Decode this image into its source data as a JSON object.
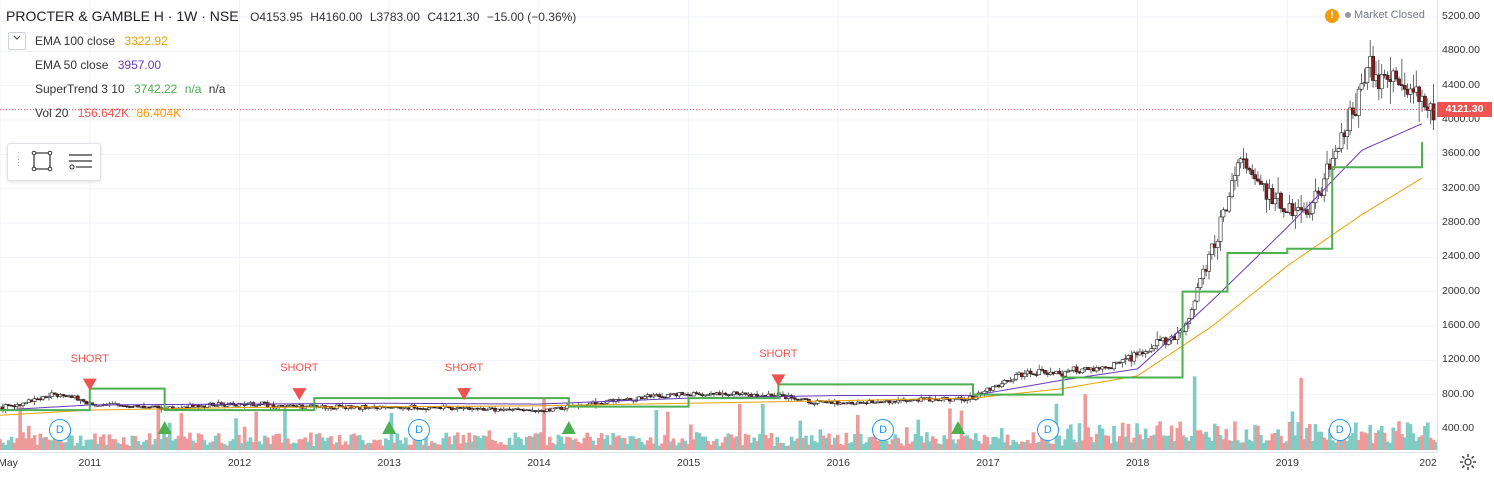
{
  "symbol": {
    "title": "PROCTER & GAMBLE H · 1W · NSE",
    "open": "O4153.95",
    "high": "H4160.00",
    "low": "L3783.00",
    "close": "C4121.30",
    "change": "−15.00 (−0.36%)"
  },
  "indicators": [
    {
      "label": "EMA 100 close",
      "value": "3322.92",
      "color": "#e8a400"
    },
    {
      "label": "EMA 50 close",
      "value": "3957.00",
      "color": "#673ab7"
    },
    {
      "label": "SuperTrend 3 10",
      "value": "3742.22",
      "extra1": "n/a",
      "extra2": "n/a",
      "color": "#4caf50"
    },
    {
      "label": "Vol 20",
      "value": "156.642K",
      "extra1": "86.404K",
      "color": "#ef5350",
      "color2": "#ff9800"
    }
  ],
  "market_status": "Market Closed",
  "warning_badge": "!",
  "current_price_label": "4121.30",
  "y_axis": {
    "ticks": [
      "5200.00",
      "4800.00",
      "4400.00",
      "4000.00",
      "3600.00",
      "3200.00",
      "2800.00",
      "2400.00",
      "2000.00",
      "1600.00",
      "1200.00",
      "800.00",
      "400.00"
    ]
  },
  "x_axis": {
    "ticks": [
      "May",
      "2011",
      "2012",
      "2013",
      "2014",
      "2015",
      "2016",
      "2017",
      "2018",
      "2019",
      "202"
    ]
  },
  "signals": {
    "short_label": "SHORT",
    "dividend_label": "D"
  },
  "icons": {
    "collapse": "chevron-down-icon",
    "rectangle_tool": "rectangle-icon",
    "menu_tool": "menu-icon",
    "settings": "gear-icon"
  },
  "colors": {
    "up": "#26a69a",
    "down": "#ef5350",
    "ema100": "#e8a400",
    "ema50": "#673ab7",
    "supertrend_up": "#4caf50",
    "supertrend_down": "#ef5350",
    "dividend": "#2196f3"
  },
  "chart_data": {
    "type": "line",
    "timeframe": "1W",
    "series": [
      {
        "name": "EMA 100 close",
        "x": [
          2010.4,
          2011,
          2012,
          2013,
          2014,
          2015,
          2016,
          2016.9,
          2017.5,
          2018,
          2018.5,
          2019,
          2019.5,
          2019.9
        ],
        "values": [
          560,
          620,
          650,
          660,
          670,
          700,
          730,
          760,
          870,
          1020,
          1600,
          2300,
          2900,
          3322.92
        ]
      },
      {
        "name": "EMA 50 close",
        "x": [
          2010.4,
          2011,
          2012,
          2013,
          2014,
          2015,
          2016,
          2016.9,
          2017.5,
          2018,
          2018.5,
          2019,
          2019.5,
          2019.9
        ],
        "values": [
          620,
          680,
          690,
          700,
          690,
          760,
          790,
          790,
          970,
          1100,
          1900,
          2750,
          3650,
          3957.0
        ]
      },
      {
        "name": "SuperTrend 3 10",
        "x": [
          2010.4,
          2011,
          2011.5,
          2012.5,
          2013.5,
          2014.2,
          2015,
          2015.6,
          2016.9,
          2017.5,
          2018.3,
          2018.6,
          2019,
          2019.3,
          2019.9
        ],
        "values": [
          620,
          870,
          620,
          760,
          760,
          660,
          760,
          920,
          800,
          1000,
          2000,
          2450,
          2500,
          3450,
          3742.22
        ]
      },
      {
        "name": "Close",
        "x": [
          2010.4,
          2010.8,
          2011,
          2011.5,
          2012,
          2012.5,
          2013,
          2013.5,
          2014,
          2014.5,
          2015,
          2015.5,
          2016,
          2016.5,
          2016.9,
          2017.2,
          2017.5,
          2017.8,
          2018,
          2018.3,
          2018.5,
          2018.7,
          2019,
          2019.2,
          2019.4,
          2019.55,
          2019.7,
          2019.9
        ],
        "values": [
          640,
          820,
          690,
          650,
          690,
          660,
          650,
          640,
          610,
          730,
          820,
          790,
          690,
          740,
          760,
          1040,
          1060,
          1110,
          1280,
          1510,
          2500,
          3550,
          2900,
          3050,
          4000,
          4600,
          4500,
          4121.3
        ]
      }
    ],
    "signals": [
      {
        "type": "short",
        "x": 2011.0,
        "price": 870
      },
      {
        "type": "short",
        "x": 2012.4,
        "price": 760
      },
      {
        "type": "short",
        "x": 2013.5,
        "price": 760
      },
      {
        "type": "short",
        "x": 2015.6,
        "price": 920
      },
      {
        "type": "long",
        "x": 2011.5,
        "price": 560
      },
      {
        "type": "long",
        "x": 2013.0,
        "price": 560
      },
      {
        "type": "long",
        "x": 2014.2,
        "price": 560
      },
      {
        "type": "long",
        "x": 2016.8,
        "price": 600
      }
    ],
    "dividends": [
      2010.8,
      2013.2,
      2016.3,
      2017.4,
      2019.35
    ],
    "ylim": [
      400,
      5200
    ],
    "xlim": [
      2010.4,
      2020.0
    ],
    "last_price": 4121.3,
    "grid": true
  }
}
